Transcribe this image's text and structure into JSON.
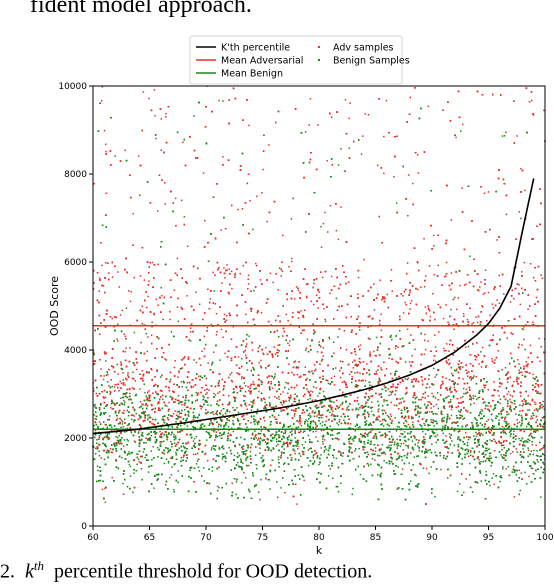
{
  "page": {
    "top_text": "fident model approach.",
    "caption_prefix": "2.",
    "caption_k": "k",
    "caption_th": "th",
    "caption_rest": "percentile threshold for OOD detection."
  },
  "colors": {
    "adversarial": "#e8302a",
    "benign": "#1a8a1a",
    "percentile": "#000000",
    "mean_adv": "#e8302a",
    "mean_benign": "#1a8a1a"
  },
  "chart_data": {
    "type": "scatter",
    "xlabel": "k",
    "ylabel": "OOD Score",
    "xlim": [
      60,
      100
    ],
    "ylim": [
      0,
      10000
    ],
    "xticks": [
      60,
      65,
      70,
      75,
      80,
      85,
      90,
      95,
      100
    ],
    "yticks": [
      0,
      2000,
      4000,
      6000,
      8000,
      10000
    ],
    "legend_position": "top-right",
    "legend": [
      {
        "label": "K'th percentile",
        "kind": "line",
        "color": "#000000"
      },
      {
        "label": "Mean Adversarial",
        "kind": "line",
        "color": "#e8302a"
      },
      {
        "label": "Mean Benign",
        "kind": "line",
        "color": "#1a8a1a"
      },
      {
        "label": "Adv samples",
        "kind": "marker",
        "color": "#e8302a"
      },
      {
        "label": "Benign Samples",
        "kind": "marker",
        "color": "#1a8a1a"
      }
    ],
    "series": [
      {
        "name": "K'th percentile",
        "kind": "line",
        "x": [
          60,
          62,
          64,
          66,
          68,
          70,
          72,
          74,
          76,
          78,
          80,
          82,
          84,
          86,
          88,
          90,
          92,
          94,
          95,
          96,
          97,
          98,
          99
        ],
        "y": [
          2100,
          2150,
          2200,
          2270,
          2340,
          2420,
          2500,
          2580,
          2660,
          2750,
          2850,
          2970,
          3100,
          3250,
          3430,
          3650,
          3950,
          4350,
          4600,
          4950,
          5450,
          6700,
          7900
        ]
      },
      {
        "name": "Mean Adversarial",
        "kind": "hline",
        "y": 4550
      },
      {
        "name": "Mean Benign",
        "kind": "hline",
        "y": 2200
      },
      {
        "name": "Adv samples",
        "kind": "scatter",
        "x_range": [
          60,
          100
        ],
        "y_range": [
          0,
          10000
        ],
        "count": 6000,
        "distribution": "dense 1000-5000, sparse up to 10000"
      },
      {
        "name": "Benign Samples",
        "kind": "scatter",
        "x_range": [
          60,
          100
        ],
        "y_range": [
          0,
          10000
        ],
        "count": 6000,
        "distribution": "dense 1000-3000"
      }
    ]
  }
}
